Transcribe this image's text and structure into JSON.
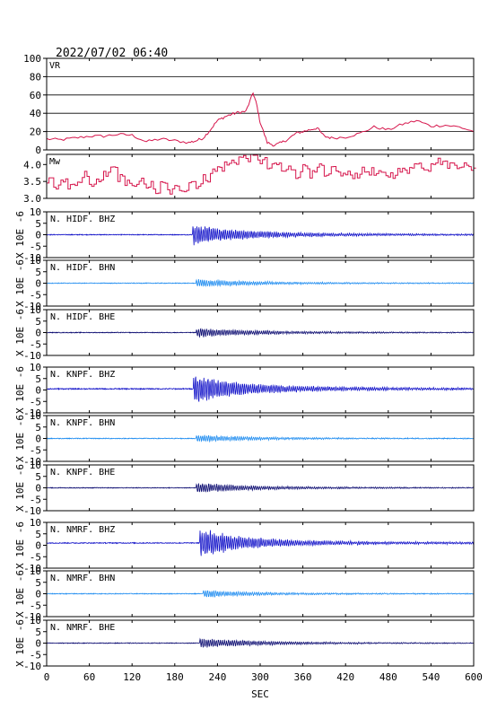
{
  "title": "2022/07/02 06:40",
  "chart_data": {
    "type": "line",
    "xlabel": "SEC",
    "xlim": [
      0,
      600
    ],
    "xticks": [
      0,
      60,
      120,
      180,
      240,
      300,
      360,
      420,
      480,
      540,
      600
    ],
    "colors": {
      "vr": "#d6164c",
      "mw": "#d6164c",
      "bhz": "#1010c8",
      "bhn": "#1e8cf0",
      "bhe": "#0a0a70"
    },
    "vr": {
      "label": "VR",
      "ylim": [
        0,
        100
      ],
      "yticks": [
        0,
        20,
        40,
        60,
        80,
        100
      ],
      "x": [
        0,
        20,
        40,
        60,
        80,
        100,
        120,
        140,
        160,
        180,
        200,
        210,
        220,
        230,
        240,
        250,
        260,
        270,
        280,
        290,
        295,
        300,
        310,
        320,
        330,
        340,
        350,
        360,
        370,
        380,
        390,
        400,
        420,
        440,
        460,
        480,
        500,
        520,
        540,
        560,
        580,
        600
      ],
      "y": [
        12,
        11,
        13,
        15,
        15,
        17,
        16,
        9,
        12,
        10,
        8,
        10,
        13,
        22,
        32,
        36,
        39,
        41,
        42,
        62,
        50,
        30,
        8,
        5,
        8,
        12,
        18,
        20,
        22,
        24,
        15,
        13,
        14,
        18,
        25,
        22,
        28,
        32,
        26,
        27,
        25,
        20
      ]
    },
    "mw": {
      "label": "Mw",
      "ylim": [
        3.0,
        4.3
      ],
      "yticks": [
        3.0,
        3.5,
        4.0
      ],
      "x": [
        0,
        10,
        20,
        30,
        40,
        50,
        60,
        70,
        80,
        90,
        100,
        110,
        120,
        130,
        140,
        150,
        160,
        170,
        180,
        190,
        200,
        210,
        220,
        230,
        240,
        250,
        260,
        270,
        280,
        290,
        300,
        310,
        320,
        330,
        340,
        350,
        360,
        370,
        380,
        390,
        400,
        410,
        420,
        430,
        440,
        450,
        460,
        470,
        480,
        490,
        500,
        510,
        520,
        530,
        540,
        550,
        560,
        570,
        580,
        590,
        600
      ],
      "y": [
        3.5,
        3.3,
        3.6,
        3.3,
        3.5,
        3.7,
        3.3,
        3.5,
        3.7,
        3.9,
        3.6,
        3.5,
        3.3,
        3.5,
        3.4,
        3.2,
        3.4,
        3.2,
        3.3,
        3.3,
        3.5,
        3.4,
        3.6,
        3.8,
        3.9,
        4.0,
        4.1,
        4.2,
        4.2,
        4.2,
        4.1,
        3.9,
        4.0,
        3.8,
        3.9,
        3.7,
        4.0,
        3.7,
        3.9,
        3.6,
        3.9,
        3.7,
        3.7,
        3.7,
        3.8,
        3.8,
        3.7,
        3.7,
        3.7,
        3.8,
        3.8,
        4.0,
        4.0,
        3.9,
        4.1,
        4.1,
        4.0,
        4.0,
        4.0,
        3.9,
        3.9
      ]
    },
    "traces": [
      {
        "name": "N. HIDF. BHZ",
        "component": "bhz",
        "onset": 205,
        "amp": 4.0,
        "noise": 0.35,
        "decay": 60,
        "offset": 0
      },
      {
        "name": "N. HIDF. BHN",
        "component": "bhn",
        "onset": 210,
        "amp": 1.5,
        "noise": 0.3,
        "decay": 80,
        "offset": 0
      },
      {
        "name": "N. HIDF. BHE",
        "component": "bhe",
        "onset": 210,
        "amp": 1.8,
        "noise": 0.3,
        "decay": 80,
        "offset": 0
      },
      {
        "name": "N. KNPF. BHZ",
        "component": "bhz",
        "onset": 206,
        "amp": 5.5,
        "noise": 0.45,
        "decay": 60,
        "offset": 0.5
      },
      {
        "name": "N. KNPF. BHN",
        "component": "bhn",
        "onset": 210,
        "amp": 1.3,
        "noise": 0.35,
        "decay": 80,
        "offset": 0
      },
      {
        "name": "N. KNPF. BHE",
        "component": "bhe",
        "onset": 210,
        "amp": 1.8,
        "noise": 0.3,
        "decay": 80,
        "offset": 0
      },
      {
        "name": "N. NMRF. BHZ",
        "component": "bhz",
        "onset": 215,
        "amp": 5.5,
        "noise": 0.4,
        "decay": 55,
        "offset": 1.0
      },
      {
        "name": "N. NMRF. BHN",
        "component": "bhn",
        "onset": 220,
        "amp": 1.3,
        "noise": 0.35,
        "decay": 80,
        "offset": 0
      },
      {
        "name": "N. NMRF. BHE",
        "component": "bhe",
        "onset": 215,
        "amp": 1.8,
        "noise": 0.3,
        "decay": 80,
        "offset": 0
      }
    ],
    "trace_ylim": [
      -10,
      10
    ],
    "trace_yticks": [
      -10,
      -5,
      0,
      5,
      10
    ],
    "trace_ylabel": "X 10E -6"
  }
}
